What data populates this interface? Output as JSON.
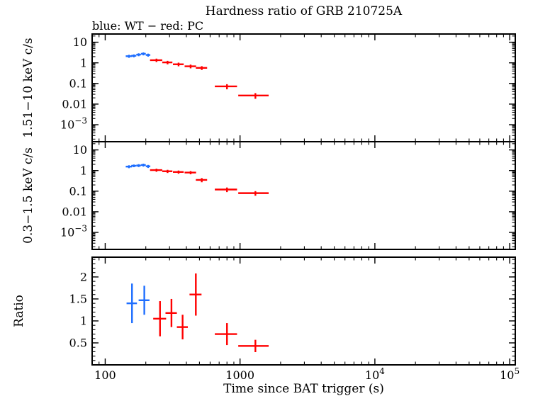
{
  "figure": {
    "title": "Hardness ratio of GRB 210725A",
    "subtitle": "blue: WT − red: PC",
    "xlabel": "Time since BAT trigger (s)",
    "background": "#ffffff",
    "axis_color": "#000000"
  },
  "xaxis": {
    "scale": "log",
    "lim": [
      80,
      110000
    ],
    "major_ticks": [
      100,
      1000,
      10000,
      100000
    ],
    "tick_labels": [
      "100",
      "1000",
      {
        "base": "10",
        "sup": "4"
      },
      {
        "base": "10",
        "sup": "5"
      }
    ]
  },
  "chart_data": [
    {
      "type": "scatter",
      "panel": "hard-band-lightcurve",
      "ylabel": "1.51−10 keV c/s",
      "yscale": "log",
      "ylim": [
        0.00015,
        25
      ],
      "yticks": [
        10,
        1,
        0.1,
        0.01,
        0.001
      ],
      "ytick_labels": [
        "10",
        "1",
        "0.1",
        "0.01",
        {
          "base": "10",
          "sup": "−3"
        }
      ],
      "point_format": [
        "time_s",
        "time_err_s",
        "value_cps",
        "value_err_cps"
      ],
      "series": [
        {
          "name": "WT",
          "color": "#1e6eff",
          "points": [
            [
              150,
              8,
              2.1,
              0.35
            ],
            [
              163,
              7,
              2.2,
              0.35
            ],
            [
              177,
              7,
              2.5,
              0.4
            ],
            [
              192,
              8,
              2.75,
              0.45
            ],
            [
              208,
              8,
              2.4,
              0.4
            ]
          ]
        },
        {
          "name": "PC",
          "color": "#ff0000",
          "points": [
            [
              240,
              25,
              1.35,
              0.25
            ],
            [
              290,
              25,
              1.05,
              0.2
            ],
            [
              350,
              32,
              0.85,
              0.17
            ],
            [
              430,
              42,
              0.68,
              0.14
            ],
            [
              520,
              50,
              0.57,
              0.12
            ],
            [
              800,
              150,
              0.072,
              0.02
            ],
            [
              1300,
              330,
              0.026,
              0.008
            ]
          ]
        }
      ]
    },
    {
      "type": "scatter",
      "panel": "soft-band-lightcurve",
      "ylabel": "0.3−1.5 keV c/s",
      "yscale": "log",
      "ylim": [
        0.00015,
        25
      ],
      "yticks": [
        10,
        1,
        0.1,
        0.01,
        0.001
      ],
      "ytick_labels": [
        "10",
        "1",
        "0.1",
        "0.01",
        {
          "base": "10",
          "sup": "−3"
        }
      ],
      "point_format": [
        "time_s",
        "time_err_s",
        "value_cps",
        "value_err_cps"
      ],
      "series": [
        {
          "name": "WT",
          "color": "#1e6eff",
          "points": [
            [
              150,
              8,
              1.55,
              0.25
            ],
            [
              163,
              7,
              1.7,
              0.25
            ],
            [
              177,
              7,
              1.75,
              0.28
            ],
            [
              192,
              8,
              1.85,
              0.3
            ],
            [
              208,
              8,
              1.6,
              0.27
            ]
          ]
        },
        {
          "name": "PC",
          "color": "#ff0000",
          "points": [
            [
              240,
              25,
              1.05,
              0.18
            ],
            [
              290,
              25,
              0.92,
              0.16
            ],
            [
              350,
              32,
              0.85,
              0.15
            ],
            [
              430,
              42,
              0.8,
              0.14
            ],
            [
              520,
              50,
              0.35,
              0.08
            ],
            [
              800,
              150,
              0.12,
              0.03
            ],
            [
              1300,
              330,
              0.08,
              0.02
            ]
          ]
        }
      ]
    },
    {
      "type": "scatter",
      "panel": "hardness-ratio",
      "ylabel": "Ratio",
      "yscale": "linear",
      "ylim": [
        0,
        2.45
      ],
      "yticks": [
        0.5,
        1,
        1.5,
        2
      ],
      "ytick_labels": [
        "0.5",
        "1",
        "1.5",
        "2"
      ],
      "minor_tick_step": 0.1,
      "point_format": [
        "time_s",
        "time_err_s",
        "ratio",
        "ratio_err"
      ],
      "series": [
        {
          "name": "WT",
          "color": "#1e6eff",
          "points": [
            [
              158,
              14,
              1.4,
              0.45
            ],
            [
              195,
              18,
              1.47,
              0.33
            ]
          ]
        },
        {
          "name": "PC",
          "color": "#ff0000",
          "points": [
            [
              255,
              28,
              1.05,
              0.4
            ],
            [
              310,
              30,
              1.18,
              0.32
            ],
            [
              375,
              35,
              0.86,
              0.28
            ],
            [
              470,
              48,
              1.6,
              0.48
            ],
            [
              800,
              150,
              0.7,
              0.25
            ],
            [
              1300,
              330,
              0.43,
              0.14
            ]
          ]
        }
      ]
    }
  ]
}
